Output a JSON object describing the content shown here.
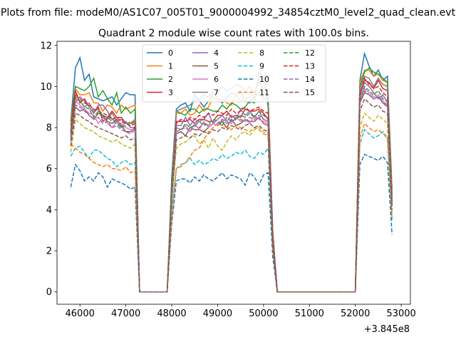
{
  "chart_data": {
    "type": "line",
    "suptitle": "Plots from file: modeM0/AS1C07_005T01_9000004992_34854cztM0_level2_quad_clean.evt",
    "title": "Quadrant 2 module wise count rates with 100.0s bins.",
    "xlabel": "",
    "ylabel": "",
    "x_offset_label": "+3.845e8",
    "x_offset": 384500000,
    "xlim": [
      45500,
      53200
    ],
    "ylim": [
      -0.6,
      12.2
    ],
    "xticks": [
      46000,
      47000,
      48000,
      49000,
      50000,
      51000,
      52000,
      53000
    ],
    "yticks": [
      0,
      2,
      4,
      6,
      8,
      10,
      12
    ],
    "grid": false,
    "legend_placement": "top-center",
    "legend_columns": 4,
    "colors": [
      "#1f77b4",
      "#ff7f0e",
      "#2ca02c",
      "#d62728",
      "#9467bd",
      "#8c564b",
      "#e377c2",
      "#7f7f7f",
      "#bcbd22",
      "#17becf"
    ],
    "x": [
      45800,
      45900,
      46000,
      46100,
      46200,
      46300,
      46400,
      46500,
      46600,
      46700,
      46800,
      46900,
      47000,
      47100,
      47200,
      47300,
      47400,
      47500,
      47600,
      47700,
      47800,
      47900,
      48000,
      48100,
      48200,
      48300,
      48400,
      48500,
      48600,
      48700,
      48800,
      48900,
      49000,
      49100,
      49200,
      49300,
      49400,
      49500,
      49600,
      49700,
      49800,
      49900,
      50000,
      50100,
      50200,
      50300,
      50400,
      50500,
      50600,
      50700,
      50800,
      50900,
      51000,
      51100,
      51200,
      51300,
      51400,
      51500,
      51600,
      51700,
      51800,
      51900,
      52000,
      52100,
      52200,
      52300,
      52400,
      52500,
      52600,
      52700,
      52800
    ],
    "series": [
      {
        "name": "0",
        "values": [
          8.3,
          10.9,
          11.4,
          10.3,
          10.6,
          9.5,
          9.4,
          9.3,
          9.4,
          9.5,
          9.1,
          9.4,
          9.7,
          9.6,
          9.6,
          0,
          0,
          0,
          0,
          0,
          0,
          0,
          5.6,
          8.9,
          9.1,
          9.2,
          8.8,
          9.6,
          9.3,
          9.0,
          9.3,
          9.7,
          9.4,
          9.2,
          9.5,
          9.7,
          9.6,
          9.8,
          9.3,
          9.2,
          9.5,
          9.7,
          9.4,
          9.5,
          3.0,
          0,
          0,
          0,
          0,
          0,
          0,
          0,
          0,
          0,
          0,
          0,
          0,
          0,
          0,
          0,
          0,
          0,
          0,
          10.3,
          11.6,
          11.0,
          10.5,
          10.8,
          10.3,
          10.5,
          5.0
        ]
      },
      {
        "name": "1",
        "values": [
          8.3,
          9.9,
          9.6,
          9.6,
          9.7,
          9.2,
          9.2,
          8.8,
          9.1,
          9.0,
          8.7,
          9.1,
          8.9,
          9.0,
          9.1,
          0,
          0,
          0,
          0,
          0,
          0,
          0,
          5.1,
          8.7,
          8.7,
          8.9,
          8.6,
          8.7,
          9.1,
          8.8,
          9.0,
          9.5,
          9.3,
          9.4,
          9.2,
          9.1,
          9.6,
          9.3,
          9.4,
          9.5,
          9.6,
          10.5,
          9.4,
          9.5,
          2.9,
          0,
          0,
          0,
          0,
          0,
          0,
          0,
          0,
          0,
          0,
          0,
          0,
          0,
          0,
          0,
          0,
          0,
          0,
          10.2,
          10.8,
          10.8,
          10.5,
          10.6,
          10.3,
          10.2,
          4.9
        ]
      },
      {
        "name": "2",
        "values": [
          8.1,
          10.0,
          9.9,
          9.8,
          10.0,
          10.4,
          9.5,
          9.8,
          9.4,
          9.1,
          9.7,
          8.7,
          9.0,
          8.7,
          8.9,
          0,
          0,
          0,
          0,
          0,
          0,
          0,
          5.3,
          8.8,
          8.7,
          8.6,
          8.9,
          8.9,
          8.7,
          8.9,
          8.9,
          8.8,
          8.8,
          9.1,
          8.9,
          9.2,
          9.1,
          8.9,
          9.0,
          9.3,
          9.2,
          10.7,
          10.5,
          9.0,
          2.8,
          0,
          0,
          0,
          0,
          0,
          0,
          0,
          0,
          0,
          0,
          0,
          0,
          0,
          0,
          0,
          0,
          0,
          0,
          10.0,
          10.7,
          10.9,
          10.7,
          10.6,
          10.4,
          10.2,
          4.7
        ]
      },
      {
        "name": "3",
        "values": [
          7.8,
          9.8,
          9.2,
          9.4,
          9.0,
          8.7,
          9.0,
          8.3,
          8.5,
          8.8,
          8.5,
          8.5,
          8.2,
          8.2,
          8.3,
          0,
          0,
          0,
          0,
          0,
          0,
          0,
          5.0,
          8.3,
          8.3,
          8.3,
          8.4,
          8.2,
          8.4,
          8.4,
          8.3,
          8.3,
          8.6,
          8.6,
          8.8,
          8.5,
          8.6,
          8.5,
          8.9,
          8.8,
          8.8,
          8.9,
          8.7,
          8.4,
          2.7,
          0,
          0,
          0,
          0,
          0,
          0,
          0,
          0,
          0,
          0,
          0,
          0,
          0,
          0,
          0,
          0,
          0,
          0,
          9.7,
          10.3,
          10.2,
          9.9,
          10.3,
          9.9,
          9.8,
          4.6
        ]
      },
      {
        "name": "4",
        "values": [
          7.6,
          9.2,
          9.5,
          9.3,
          9.0,
          8.7,
          9.1,
          9.1,
          8.8,
          8.4,
          8.3,
          8.0,
          8.3,
          8.0,
          8.0,
          0,
          0,
          0,
          0,
          0,
          0,
          0,
          4.9,
          8.1,
          8.1,
          8.5,
          8.1,
          8.4,
          8.3,
          8.4,
          8.7,
          8.2,
          8.4,
          8.6,
          8.3,
          8.6,
          8.4,
          8.9,
          8.6,
          8.8,
          8.5,
          8.8,
          8.4,
          8.3,
          2.6,
          0,
          0,
          0,
          0,
          0,
          0,
          0,
          0,
          0,
          0,
          0,
          0,
          0,
          0,
          0,
          0,
          0,
          0,
          9.5,
          10.2,
          10.0,
          9.7,
          9.4,
          9.6,
          9.2,
          4.4
        ]
      },
      {
        "name": "5",
        "values": [
          7.3,
          9.0,
          8.8,
          8.9,
          8.6,
          8.4,
          8.7,
          8.6,
          8.3,
          8.2,
          8.4,
          8.1,
          7.8,
          7.8,
          8.0,
          0,
          0,
          0,
          0,
          0,
          0,
          0,
          4.6,
          7.7,
          7.8,
          7.6,
          8.0,
          7.9,
          7.9,
          7.8,
          8.0,
          8.2,
          8.1,
          8.3,
          8.0,
          8.4,
          8.1,
          8.2,
          8.4,
          8.3,
          8.3,
          8.5,
          8.2,
          8.1,
          2.5,
          0,
          0,
          0,
          0,
          0,
          0,
          0,
          0,
          0,
          0,
          0,
          0,
          0,
          0,
          0,
          0,
          0,
          0,
          9.2,
          9.7,
          9.6,
          9.4,
          9.5,
          9.2,
          9.1,
          4.2
        ]
      },
      {
        "name": "6",
        "values": [
          7.3,
          9.3,
          9.1,
          8.9,
          8.7,
          8.6,
          8.2,
          8.5,
          8.2,
          8.0,
          8.3,
          8.2,
          8.0,
          7.9,
          7.9,
          0,
          0,
          0,
          0,
          0,
          0,
          0,
          4.7,
          8.0,
          7.9,
          8.1,
          7.8,
          8.2,
          7.9,
          8.3,
          8.0,
          8.2,
          8.1,
          8.4,
          8.3,
          8.2,
          8.5,
          8.3,
          8.4,
          8.2,
          8.6,
          8.4,
          8.3,
          8.2,
          2.5,
          0,
          0,
          0,
          0,
          0,
          0,
          0,
          0,
          0,
          0,
          0,
          0,
          0,
          0,
          0,
          0,
          0,
          0,
          9.4,
          9.9,
          9.7,
          9.5,
          9.6,
          9.3,
          9.1,
          4.2
        ]
      },
      {
        "name": "7",
        "values": [
          7.9,
          9.4,
          9.3,
          9.0,
          9.2,
          8.8,
          8.9,
          8.5,
          8.4,
          8.7,
          8.3,
          8.4,
          8.2,
          8.2,
          8.4,
          0,
          0,
          0,
          0,
          0,
          0,
          0,
          5.0,
          8.8,
          8.9,
          9.0,
          9.1,
          9.3,
          9.4,
          9.6,
          9.5,
          9.9,
          9.7,
          10.0,
          9.8,
          9.9,
          10.1,
          10.0,
          9.8,
          10.0,
          9.7,
          10.2,
          9.9,
          9.5,
          2.8,
          0,
          0,
          0,
          0,
          0,
          0,
          0,
          0,
          0,
          0,
          0,
          0,
          0,
          0,
          0,
          0,
          0,
          0,
          9.9,
          10.5,
          10.4,
          10.0,
          10.4,
          10.1,
          10.0,
          4.5
        ]
      },
      {
        "name": "8",
        "values": [
          6.8,
          8.4,
          8.2,
          8.0,
          7.9,
          7.8,
          7.6,
          7.5,
          7.4,
          7.3,
          7.4,
          7.2,
          7.1,
          7.0,
          7.2,
          0,
          0,
          0,
          0,
          0,
          0,
          0,
          4.4,
          7.0,
          7.2,
          7.3,
          7.5,
          7.6,
          7.2,
          7.4,
          7.0,
          7.5,
          7.1,
          6.9,
          7.3,
          7.6,
          7.4,
          7.7,
          7.8,
          7.6,
          7.9,
          8.0,
          7.8,
          7.7,
          2.3,
          0,
          0,
          0,
          0,
          0,
          0,
          0,
          0,
          0,
          0,
          0,
          0,
          0,
          0,
          0,
          0,
          0,
          0,
          8.0,
          8.7,
          8.5,
          8.3,
          8.6,
          8.4,
          8.2,
          3.9
        ]
      },
      {
        "name": "9",
        "values": [
          6.6,
          7.0,
          7.1,
          6.8,
          6.5,
          6.9,
          6.9,
          6.7,
          6.5,
          6.4,
          6.1,
          6.3,
          6.4,
          6.2,
          6.3,
          0,
          0,
          0,
          0,
          0,
          0,
          0,
          3.9,
          6.0,
          6.2,
          6.3,
          6.5,
          6.2,
          6.4,
          6.2,
          6.3,
          6.5,
          6.4,
          6.7,
          6.5,
          6.6,
          6.8,
          6.7,
          6.9,
          6.6,
          6.5,
          6.8,
          6.7,
          7.0,
          2.1,
          0,
          0,
          0,
          0,
          0,
          0,
          0,
          0,
          0,
          0,
          0,
          0,
          0,
          0,
          0,
          0,
          0,
          0,
          7.2,
          7.9,
          7.7,
          7.5,
          7.6,
          7.8,
          7.4,
          3.5
        ]
      },
      {
        "name": "10",
        "values": [
          5.1,
          6.2,
          5.9,
          5.4,
          5.6,
          5.4,
          5.8,
          5.6,
          5.1,
          5.5,
          5.4,
          5.3,
          5.2,
          5.0,
          5.1,
          0,
          0,
          0,
          0,
          0,
          0,
          0,
          3.3,
          5.4,
          5.5,
          5.5,
          5.3,
          5.6,
          5.4,
          5.7,
          5.5,
          5.4,
          5.6,
          5.8,
          5.5,
          5.7,
          5.6,
          5.5,
          5.2,
          5.8,
          5.6,
          5.2,
          5.7,
          5.8,
          1.7,
          0,
          0,
          0,
          0,
          0,
          0,
          0,
          0,
          0,
          0,
          0,
          0,
          0,
          0,
          0,
          0,
          0,
          0,
          6.2,
          6.7,
          6.6,
          6.5,
          6.4,
          6.6,
          6.3,
          2.8
        ]
      },
      {
        "name": "11",
        "values": [
          7.2,
          7.0,
          6.8,
          6.7,
          6.5,
          6.3,
          6.2,
          6.1,
          6.2,
          6.0,
          6.0,
          5.9,
          6.1,
          5.8,
          5.9,
          0,
          0,
          0,
          0,
          0,
          0,
          0,
          3.6,
          6.0,
          6.1,
          6.3,
          6.6,
          6.9,
          7.0,
          7.4,
          7.8,
          8.0,
          8.2,
          8.1,
          8.0,
          7.9,
          8.1,
          8.0,
          7.9,
          7.8,
          8.0,
          7.9,
          7.7,
          7.6,
          2.2,
          0,
          0,
          0,
          0,
          0,
          0,
          0,
          0,
          0,
          0,
          0,
          0,
          0,
          0,
          0,
          0,
          0,
          0,
          7.5,
          8.2,
          8.0,
          7.8,
          7.9,
          7.7,
          7.6,
          3.6
        ]
      },
      {
        "name": "12",
        "values": [
          7.5,
          9.5,
          9.3,
          9.0,
          8.9,
          8.5,
          8.8,
          8.6,
          8.5,
          8.3,
          8.2,
          8.0,
          8.1,
          8.3,
          8.0,
          0,
          0,
          0,
          0,
          0,
          0,
          0,
          4.8,
          8.0,
          7.9,
          8.2,
          8.0,
          8.1,
          8.3,
          8.1,
          8.2,
          8.4,
          8.3,
          8.1,
          8.5,
          8.3,
          8.4,
          8.6,
          8.5,
          8.7,
          8.5,
          8.8,
          8.6,
          8.4,
          2.6,
          0,
          0,
          0,
          0,
          0,
          0,
          0,
          0,
          0,
          0,
          0,
          0,
          0,
          0,
          0,
          0,
          0,
          0,
          9.3,
          10.0,
          9.8,
          9.6,
          9.8,
          9.4,
          9.3,
          4.3
        ]
      },
      {
        "name": "13",
        "values": [
          7.7,
          9.6,
          9.4,
          9.2,
          9.1,
          8.9,
          8.8,
          8.7,
          8.6,
          8.4,
          8.5,
          8.3,
          8.2,
          8.1,
          8.2,
          0,
          0,
          0,
          0,
          0,
          0,
          0,
          4.9,
          8.2,
          8.4,
          8.3,
          8.5,
          8.4,
          8.6,
          8.5,
          8.7,
          8.6,
          8.8,
          8.7,
          8.6,
          8.9,
          8.7,
          8.8,
          9.0,
          8.8,
          8.9,
          9.0,
          8.8,
          8.7,
          2.7,
          0,
          0,
          0,
          0,
          0,
          0,
          0,
          0,
          0,
          0,
          0,
          0,
          0,
          0,
          0,
          0,
          0,
          0,
          9.6,
          10.4,
          10.1,
          9.9,
          10.0,
          9.7,
          9.5,
          4.4
        ]
      },
      {
        "name": "14",
        "values": [
          7.4,
          9.1,
          9.0,
          8.8,
          8.6,
          8.4,
          8.5,
          8.2,
          8.3,
          8.0,
          8.1,
          7.9,
          7.8,
          7.7,
          7.9,
          0,
          0,
          0,
          0,
          0,
          0,
          0,
          4.7,
          7.8,
          7.9,
          8.0,
          7.8,
          8.1,
          8.0,
          8.2,
          8.1,
          8.3,
          8.2,
          8.4,
          8.2,
          8.3,
          8.5,
          8.4,
          8.3,
          8.5,
          8.4,
          8.6,
          8.4,
          8.3,
          2.5,
          0,
          0,
          0,
          0,
          0,
          0,
          0,
          0,
          0,
          0,
          0,
          0,
          0,
          0,
          0,
          0,
          0,
          0,
          9.2,
          9.8,
          9.6,
          9.4,
          9.5,
          9.2,
          9.0,
          4.2
        ]
      },
      {
        "name": "15",
        "values": [
          7.1,
          8.7,
          8.6,
          8.4,
          8.3,
          8.1,
          8.0,
          7.9,
          7.8,
          7.7,
          7.6,
          7.5,
          7.6,
          7.4,
          7.5,
          0,
          0,
          0,
          0,
          0,
          0,
          0,
          4.5,
          7.4,
          7.5,
          7.6,
          7.5,
          7.7,
          7.6,
          7.8,
          7.7,
          7.9,
          7.8,
          8.0,
          7.9,
          8.1,
          8.0,
          7.9,
          8.1,
          8.2,
          8.0,
          8.1,
          7.9,
          7.8,
          2.4,
          0,
          0,
          0,
          0,
          0,
          0,
          0,
          0,
          0,
          0,
          0,
          0,
          0,
          0,
          0,
          0,
          0,
          0,
          8.8,
          9.4,
          9.2,
          9.0,
          9.1,
          8.8,
          8.7,
          4.0
        ]
      }
    ]
  }
}
